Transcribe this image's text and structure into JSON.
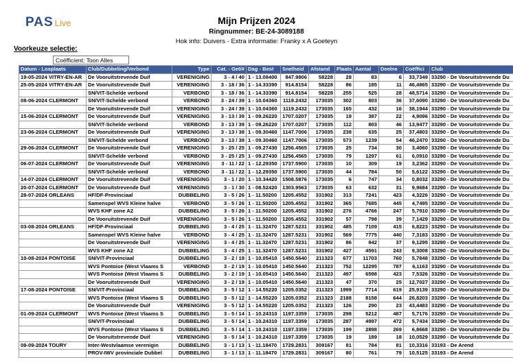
{
  "header": {
    "logo_main": "PAS",
    "logo_sub": "Live",
    "title": "Mijn Prijzen 2024",
    "ring": "Ringnummer: BE-24-3089188",
    "info": "Hok info: Duivers - Extra informatie: Franky x A Goeteyn"
  },
  "selection": {
    "label": "Voorkeuze selectie:",
    "option": "Coëfficient: Toon Alles"
  },
  "table": {
    "columns": [
      "Datum - Losplaats",
      "Club/Dubbeling/Verbond",
      "Type",
      "Cat. - Get/#",
      "Dag - Best",
      "Snelheid",
      "Afstand",
      "Plaats",
      "Aantal",
      "Deelne",
      "Coëffici",
      "Club"
    ],
    "rows": [
      [
        "19-05-2024 VITRY-EN-AR",
        "De Vooruitstrevende Duif",
        "VERENIGING",
        "3 - 4 / 40",
        "1 - 13.08400",
        "847.9806",
        "58228",
        "28",
        "83",
        "6",
        "33,7349",
        "33290 - De Vooruitstrevende Du"
      ],
      [
        "25-05-2024 VITRY-EN-AR",
        "De Vooruitstrevende Duif",
        "VERENIGING",
        "3 - 18 / 36",
        "1 - 14.33390",
        "914.8154",
        "58228",
        "86",
        "185",
        "11",
        "46,4865",
        "33290 - De Vooruitstrevende Du"
      ],
      [
        null,
        "SN/VIT-Schelde verbond",
        "VERBOND",
        "3 - 18 / 36",
        "1 - 14.33390",
        "914.8154",
        "58228",
        "255",
        "525",
        "28",
        "48,5714",
        "33290 - De Vooruitstrevende Du"
      ],
      [
        "08-06-2024 CLERMONT",
        "SN/VIT-Schelde verbond",
        "VERBOND",
        "3 - 24 / 39",
        "1 - 10.04360",
        "1119.2432",
        "173035",
        "302",
        "803",
        "36",
        "37,6090",
        "33290 - De Vooruitstrevende Du"
      ],
      [
        null,
        "De Vooruitstrevende Duif",
        "VERENIGING",
        "3 - 24 / 39",
        "1 - 10.04360",
        "1119.2432",
        "173035",
        "165",
        "432",
        "16",
        "38,1944",
        "33290 - De Vooruitstrevende Du"
      ],
      [
        "15-06-2024 CLERMONT",
        "De Vooruitstrevende Duif",
        "VERENIGING",
        "3 - 13 / 39",
        "1 - 09.26220",
        "1707.0207",
        "173035",
        "19",
        "387",
        "22",
        "4,9096",
        "33290 - De Vooruitstrevende Du"
      ],
      [
        null,
        "SN/VIT-Schelde verbond",
        "VERBOND",
        "3 - 13 / 39",
        "1 - 09.26220",
        "1707.0207",
        "173035",
        "112",
        "803",
        "46",
        "13,9477",
        "33290 - De Vooruitstrevende Du"
      ],
      [
        "23-06-2024 CLERMONT",
        "De Vooruitstrevende Duif",
        "VERENIGING",
        "3 - 13 / 38",
        "1 - 09.30460",
        "1147.7006",
        "173035",
        "238",
        "635",
        "25",
        "37,4803",
        "33290 - De Vooruitstrevende Du"
      ],
      [
        null,
        "SN/VIT-Schelde verbond",
        "VERBOND",
        "3 - 13 / 38",
        "1 - 09.30460",
        "1147.7006",
        "173035",
        "573",
        "1239",
        "54",
        "46,2470",
        "33290 - De Vooruitstrevende Du"
      ],
      [
        "29-06-2024 CLERMONT",
        "De Vooruitstrevende Duif",
        "VERENIGING",
        "3 - 25 / 25",
        "1 - 09.27430",
        "1256.4565",
        "173035",
        "25",
        "734",
        "30",
        "3,4060",
        "33290 - De Vooruitstrevende Du"
      ],
      [
        null,
        "SN/VIT-Schelde verbond",
        "VERBOND",
        "3 - 25 / 25",
        "1 - 09.27430",
        "1256.4565",
        "173035",
        "79",
        "1297",
        "61",
        "6,0910",
        "33290 - De Vooruitstrevende Du"
      ],
      [
        "06-07-2024 CLERMONT",
        "De Vooruitstrevende Duif",
        "VERENIGING",
        "3 - 11 / 22",
        "1 - 12.29350",
        "1737.5900",
        "173035",
        "10",
        "309",
        "19",
        "3,2362",
        "33290 - De Vooruitstrevende Du"
      ],
      [
        null,
        "SN/VIT-Schelde verbond",
        "VERBOND",
        "3 - 11 / 22",
        "1 - 12.29350",
        "1737.5900",
        "173035",
        "44",
        "784",
        "50",
        "5,6122",
        "33290 - De Vooruitstrevende Du"
      ],
      [
        "14-07-2024 CLERMONT",
        "De Vooruitstrevende Duif",
        "VERENIGING",
        "3 - 1 / 20",
        "1 - 10.34420",
        "1508.5876",
        "173035",
        "6",
        "747",
        "34",
        "0,8032",
        "33290 - De Vooruitstrevende Du"
      ],
      [
        "20-07-2024 CLERMONT",
        "De Vooruitstrevende Duif",
        "VERENIGING",
        "3 - 1 / 30",
        "1 - 08.52420",
        "1303.9563",
        "173035",
        "63",
        "632",
        "31",
        "9,9684",
        "33290 - De Vooruitstrevende Du"
      ],
      [
        "28-07-2024 ORLEANS",
        "HF/DF-Provinciaal",
        "DUBBELING",
        "3 - 5 / 26",
        "1 - 11.50200",
        "1205.4552",
        "331902",
        "313",
        "7241",
        "423",
        "4,3226",
        "33290 - De Vooruitstrevende Du"
      ],
      [
        null,
        "Samenspel WVS Kleine halve",
        "VERBOND",
        "3 - 5 / 26",
        "1 - 11.50200",
        "1205.4552",
        "331902",
        "365",
        "7685",
        "445",
        "4,7495",
        "33290 - De Vooruitstrevende Du"
      ],
      [
        null,
        "WVS KHF zone A2",
        "DUBBELING",
        "3 - 5 / 26",
        "1 - 11.50200",
        "1205.4552",
        "331902",
        "276",
        "4766",
        "247",
        "5,7910",
        "33290 - De Vooruitstrevende Du"
      ],
      [
        null,
        "De Vooruitstrevende Duif",
        "VERENIGING",
        "3 - 5 / 26",
        "1 - 11.50200",
        "1205.4552",
        "331902",
        "57",
        "798",
        "39",
        "7,1429",
        "33290 - De Vooruitstrevende Du"
      ],
      [
        "03-08-2024 ORLEANS",
        "HF/DF-Provinciaal",
        "DUBBELING",
        "3 - 4 / 25",
        "1 - 11.32470",
        "1287.5231",
        "331902",
        "485",
        "7109",
        "415",
        "6,8223",
        "33290 - De Vooruitstrevende Du"
      ],
      [
        null,
        "Samenspel WVS Kleine halve",
        "VERBOND",
        "3 - 4 / 25",
        "1 - 11.32470",
        "1287.5231",
        "331902",
        "569",
        "7775",
        "440",
        "7,3183",
        "33290 - De Vooruitstrevende Du"
      ],
      [
        null,
        "De Vooruitstrevende Duif",
        "VERENIGING",
        "3 - 4 / 25",
        "1 - 11.32470",
        "1287.5231",
        "331902",
        "86",
        "942",
        "37",
        "9,1295",
        "33290 - De Vooruitstrevende Du"
      ],
      [
        null,
        "WVS KHF zone A2",
        "DUBBELING",
        "3 - 4 / 25",
        "1 - 11.32470",
        "1287.5231",
        "331902",
        "427",
        "4591",
        "243",
        "9,3008",
        "33290 - De Vooruitstrevende Du"
      ],
      [
        "10-08-2024 PONTOISE",
        "SN/VIT-Provinciaal",
        "DUBBELING",
        "3 - 2 / 19",
        "1 - 10.05410",
        "1450.5640",
        "211323",
        "677",
        "11703",
        "760",
        "5,7848",
        "33290 - De Vooruitstrevende Du"
      ],
      [
        null,
        "WVS Pontoise (West Vlaams S",
        "VERBOND",
        "3 - 2 / 19",
        "1 - 10.05410",
        "1450.5640",
        "211323",
        "752",
        "12295",
        "787",
        "6,1163",
        "33290 - De Vooruitstrevende Du"
      ],
      [
        null,
        "WVS Pontoise (West Vlaams S",
        "DUBBELING",
        "3 - 2 / 19",
        "1 - 10.05410",
        "1450.5640",
        "211323",
        "497",
        "6598",
        "423",
        "7,5326",
        "33290 - De Vooruitstrevende Du"
      ],
      [
        null,
        "De Vooruitstrevende Duif",
        "VERENIGING",
        "3 - 2 / 19",
        "1 - 10.05410",
        "1450.5640",
        "211323",
        "47",
        "370",
        "25",
        "12,7027",
        "33290 - De Vooruitstrevende Du"
      ],
      [
        "17-08-2024 PONTOISE",
        "SN/VIT-Provinciaal",
        "DUBBELING",
        "3 - 5 / 12",
        "1 - 14.55220",
        "1205.0352",
        "211323",
        "1999",
        "7714",
        "619",
        "25,9139",
        "33290 - De Vooruitstrevende Du"
      ],
      [
        null,
        "WVS Pontoise (West Vlaams S",
        "DUBBELING",
        "3 - 5 / 12",
        "1 - 14.55220",
        "1205.0352",
        "211323",
        "2188",
        "8158",
        "644",
        "26,8203",
        "33290 - De Vooruitstrevende Du"
      ],
      [
        null,
        "De Vooruitstrevende Duif",
        "VERENIGING",
        "3 - 5 / 12",
        "1 - 14.55220",
        "1205.0352",
        "211323",
        "126",
        "290",
        "23",
        "43,4483",
        "33290 - De Vooruitstrevende Du"
      ],
      [
        "01-09-2024 CLERMONT",
        "WVS Pontoise (West Vlaams S",
        "DUBBELING",
        "3 - 5 / 14",
        "1 - 10.24310",
        "1197.3359",
        "173035",
        "298",
        "5212",
        "487",
        "5,7176",
        "33290 - De Vooruitstrevende Du"
      ],
      [
        null,
        "SN/VIT-Provinciaal",
        "DUBBELING",
        "3 - 5 / 14",
        "1 - 10.24310",
        "1197.3359",
        "173035",
        "287",
        "4997",
        "472",
        "5,7434",
        "33290 - De Vooruitstrevende Du"
      ],
      [
        null,
        "WVS Pontoise (West Vlaams S",
        "DUBBELING",
        "3 - 5 / 14",
        "1 - 10.24310",
        "1197.3359",
        "173035",
        "199",
        "2898",
        "269",
        "6,8668",
        "33290 - De Vooruitstrevende Du"
      ],
      [
        null,
        "De Vooruitstrevende Duif",
        "VERENIGING",
        "3 - 5 / 14",
        "1 - 10.24310",
        "1197.3359",
        "173035",
        "19",
        "189",
        "18",
        "10,0529",
        "33290 - De Vooruitstrevende Du"
      ],
      [
        "08-09-2024 TOURY",
        "Inter-Westvlaamse verenigin",
        "DUBBELING",
        "3 - 1 / 13",
        "1 - 11.18470",
        "1729.2831",
        "309167",
        "81",
        "784",
        "81",
        "10,3316",
        "33193 - De Arend"
      ],
      [
        null,
        "PROV-IWV provinciale Dubbel",
        "DUBBELING",
        "3 - 1 / 13",
        "1 - 11.18470",
        "1729.2831",
        "309167",
        "80",
        "761",
        "79",
        "10,5125",
        "33193 - De Arend"
      ]
    ]
  }
}
